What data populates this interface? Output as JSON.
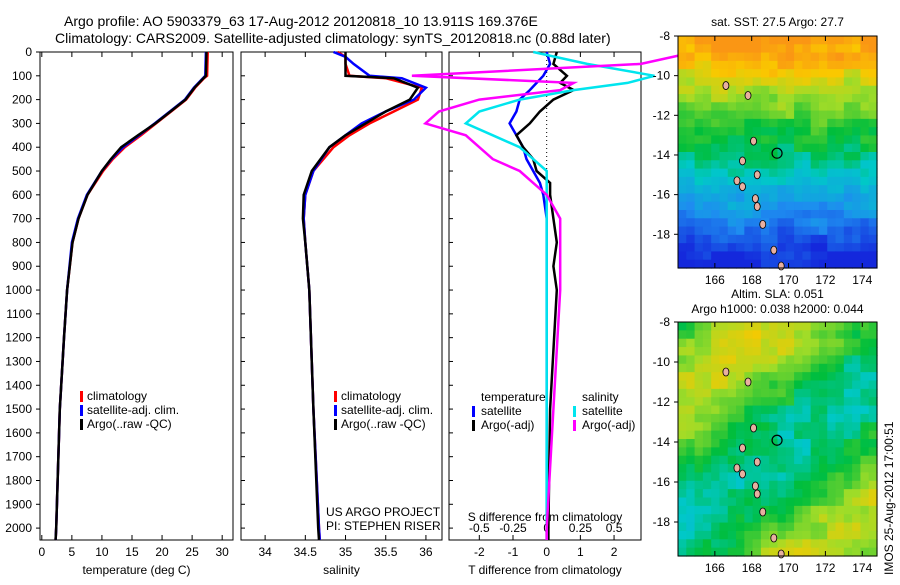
{
  "title_line1": "Argo profile: AO 5903379_63 17-Aug-2012 20120818_10 13.911S 169.376E",
  "title_line2": "Climatology: CARS2009. Satellite-adjusted climatology: synTS_20120818.nc (0.88d later)",
  "depth_ticks": [
    0,
    100,
    200,
    300,
    400,
    500,
    600,
    700,
    800,
    900,
    1000,
    1100,
    1200,
    1300,
    1400,
    1500,
    1600,
    1700,
    1800,
    1900,
    2000
  ],
  "credit": [
    "US ARGO PROJECT",
    "PI: STEPHEN RISER"
  ],
  "stamp": "IMOS 25-Aug-2012 17:00:51",
  "colors": {
    "climatology": "#ff0000",
    "satellite": "#0000ff",
    "argo": "#000000",
    "sal_satellite": "#00e5ee",
    "sal_argo": "#ff00ff"
  },
  "chart_data": [
    {
      "type": "line",
      "name": "temperature",
      "xlabel": "temperature (deg C)",
      "xlim": [
        -0.3,
        31.8
      ],
      "ylim": [
        2050,
        0
      ],
      "xticks": [
        0,
        5,
        10,
        15,
        20,
        25,
        30
      ],
      "legend": [
        "climatology",
        "satellite-adj. clim.",
        "Argo(..raw -QC)"
      ],
      "depth": [
        0,
        100,
        110,
        150,
        200,
        250,
        300,
        350,
        400,
        450,
        500,
        600,
        700,
        800,
        1000,
        1200,
        1500,
        2000,
        2050
      ],
      "series": [
        {
          "name": "climatology",
          "values": [
            27.6,
            27.5,
            27.0,
            25.5,
            24,
            21.5,
            19,
            16.5,
            13.8,
            11.8,
            10.2,
            7.6,
            6.1,
            5.1,
            4.2,
            3.7,
            3.0,
            2.4,
            2.3
          ]
        },
        {
          "name": "satellite-adj. clim.",
          "values": [
            27.3,
            27.2,
            26.8,
            25.3,
            23.8,
            21.3,
            18.8,
            16.2,
            13.5,
            11.6,
            10.0,
            7.5,
            6.0,
            5.0,
            4.2,
            3.7,
            3.0,
            2.4,
            2.3
          ]
        },
        {
          "name": "Argo(..raw -QC)",
          "values": [
            27.4,
            27.3,
            26.9,
            25.4,
            23.9,
            21.4,
            18.9,
            16.0,
            13.2,
            11.5,
            10.0,
            7.6,
            6.1,
            5.1,
            4.2,
            3.7,
            3.0,
            2.4,
            2.3
          ]
        }
      ]
    },
    {
      "type": "line",
      "name": "salinity",
      "xlabel": "salinity",
      "xlim": [
        33.7,
        36.2
      ],
      "ylim": [
        2050,
        0
      ],
      "xticks": [
        34,
        34.5,
        35,
        35.5,
        36
      ],
      "legend": [
        "climatology",
        "satellite-adj. clim.",
        "Argo(..raw -QC)"
      ],
      "depth": [
        0,
        20,
        50,
        100,
        110,
        150,
        200,
        250,
        300,
        350,
        400,
        500,
        600,
        700,
        800,
        1000,
        1500,
        2000,
        2050
      ],
      "series": [
        {
          "name": "climatology",
          "values": [
            34.9,
            35.0,
            35.0,
            35.05,
            35.5,
            35.95,
            35.9,
            35.6,
            35.3,
            35.05,
            34.85,
            34.6,
            34.5,
            34.48,
            34.5,
            34.55,
            34.6,
            34.67,
            34.68
          ]
        },
        {
          "name": "satellite-adj. clim.",
          "values": [
            34.85,
            35.0,
            35.1,
            35.3,
            35.7,
            36.0,
            35.85,
            35.5,
            35.2,
            35.0,
            34.8,
            34.6,
            34.5,
            34.48,
            34.5,
            34.55,
            34.6,
            34.67,
            34.68
          ]
        },
        {
          "name": "Argo(..raw -QC)",
          "values": [
            35.0,
            35.0,
            35.0,
            35.0,
            35.6,
            35.9,
            35.8,
            35.5,
            35.25,
            35.0,
            34.8,
            34.58,
            34.48,
            34.47,
            34.5,
            34.55,
            34.6,
            34.66,
            34.67
          ]
        }
      ]
    },
    {
      "type": "line",
      "name": "differences",
      "xlabel": "T difference from climatology",
      "xlabel2": "S difference from climatology",
      "xlim": [
        -2.9,
        2.8
      ],
      "ylim": [
        2050,
        0
      ],
      "xticks": [
        -2,
        -1,
        0,
        1,
        2
      ],
      "xticks2": [
        -0.5,
        -0.25,
        0,
        0.25,
        0.5
      ],
      "legend_t_title": "temperature",
      "legend_s_title": "salinity",
      "legend": [
        "satellite",
        "Argo(-adj)",
        "satellite",
        "Argo(-adj)"
      ],
      "depth": [
        0,
        50,
        100,
        130,
        160,
        200,
        250,
        300,
        350,
        400,
        450,
        500,
        550,
        600,
        700,
        800,
        900,
        1000,
        1500,
        2000,
        2050
      ],
      "series": [
        {
          "name": "T satellite",
          "values": [
            0.0,
            0.1,
            -0.1,
            -0.3,
            -0.5,
            -0.8,
            -0.9,
            -1.1,
            -0.9,
            -0.7,
            -0.6,
            -0.4,
            -0.2,
            -0.1,
            0,
            0,
            0,
            0,
            0,
            0,
            0
          ]
        },
        {
          "name": "T Argo(-adj)",
          "values": [
            0.3,
            0.2,
            0.6,
            0.4,
            0.8,
            0.2,
            -0.2,
            -0.5,
            -0.9,
            -0.7,
            -0.4,
            -0.3,
            0.1,
            0.1,
            0.2,
            0.3,
            0.2,
            0.3,
            0.1,
            0.05,
            0.05
          ]
        },
        {
          "name": "S satellite",
          "values": [
            -0.1,
            0.3,
            0.8,
            0.6,
            0.2,
            -0.2,
            -0.5,
            -0.6,
            -0.4,
            -0.2,
            -0.1,
            0,
            0,
            0,
            0,
            0,
            0,
            0,
            0,
            0,
            0
          ]
        },
        {
          "name": "S Argo(-adj)",
          "values": [
            1.1,
            0.7,
            -1.0,
            0.2,
            0.1,
            -0.5,
            -0.8,
            -0.9,
            -0.6,
            -0.5,
            -0.4,
            -0.2,
            -0.1,
            0,
            0.1,
            0.1,
            0.1,
            0.1,
            0.05,
            0,
            0
          ]
        }
      ]
    },
    {
      "type": "heatmap",
      "name": "sst-map",
      "title": "sat. SST: 27.5 Argo: 27.7",
      "xlim": [
        164,
        174.8
      ],
      "ylim": [
        -19.7,
        -8
      ],
      "xticks": [
        166,
        168,
        170,
        172,
        174
      ],
      "yticks": [
        -8,
        -10,
        -12,
        -14,
        -16,
        -18
      ],
      "profile_location": [
        169.376,
        -13.911
      ]
    },
    {
      "type": "heatmap",
      "name": "sla-map",
      "title": "Altim. SLA: 0.051",
      "title2": "Argo h1000: 0.038 h2000: 0.044",
      "xlim": [
        164,
        174.8
      ],
      "ylim": [
        -19.7,
        -8
      ],
      "xticks": [
        166,
        168,
        170,
        172,
        174
      ],
      "yticks": [
        -8,
        -10,
        -12,
        -14,
        -16,
        -18
      ],
      "profile_location": [
        169.376,
        -13.911
      ]
    }
  ]
}
